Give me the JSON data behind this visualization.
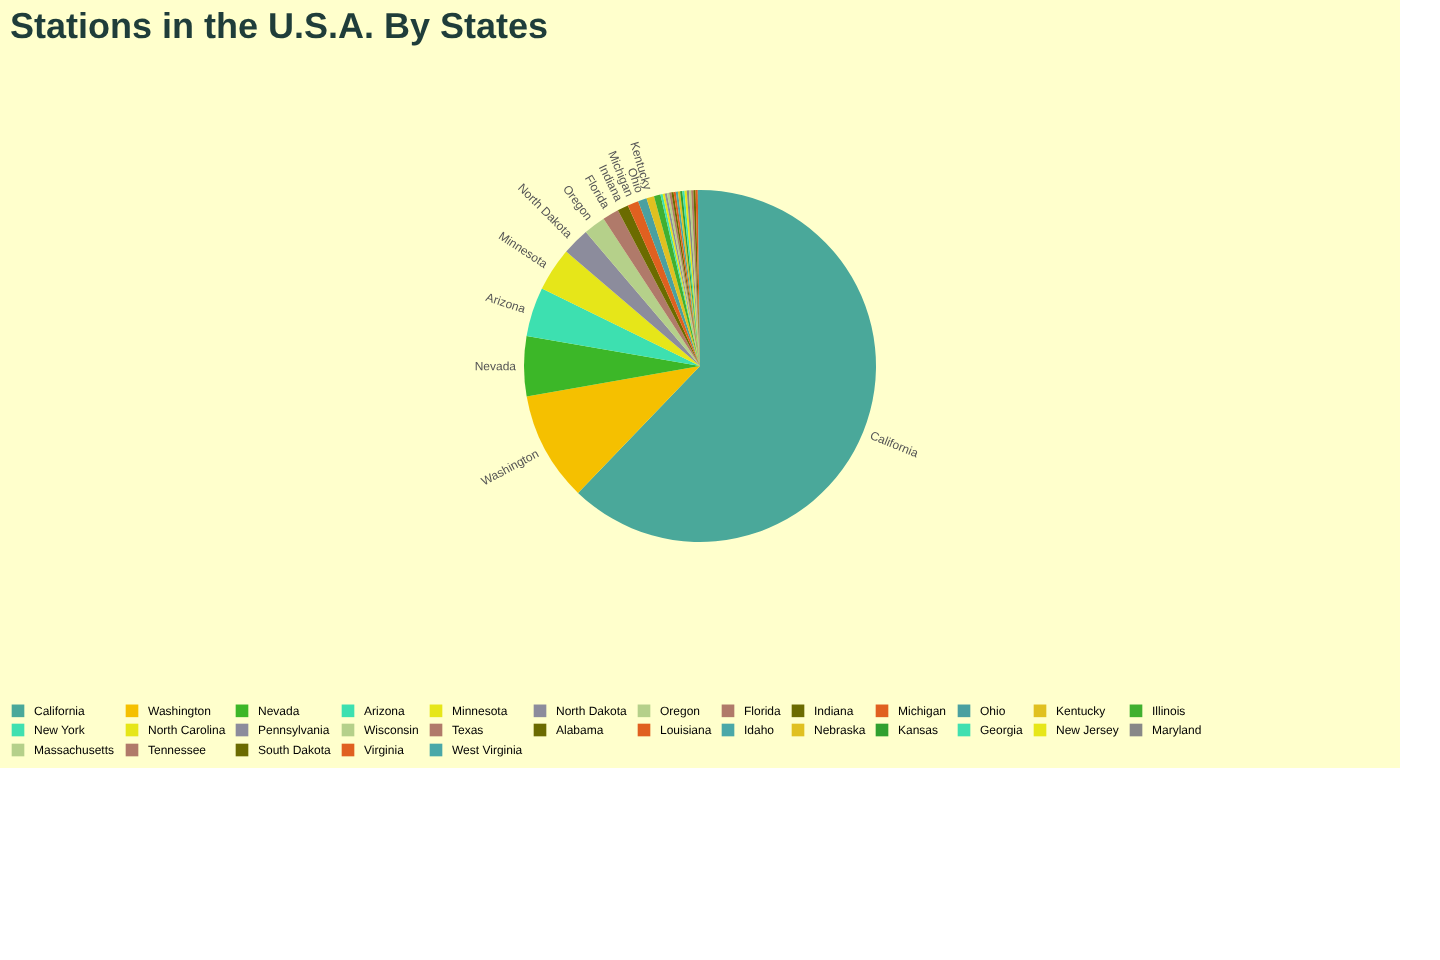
{
  "chart_data": {
    "type": "pie",
    "title": "Stations in the U.S.A. By States",
    "categories": [
      "California",
      "Washington",
      "Nevada",
      "Arizona",
      "Minnesota",
      "North Dakota",
      "Oregon",
      "Florida",
      "Indiana",
      "Michigan",
      "Ohio",
      "Kentucky",
      "Illinois",
      "New York",
      "North Carolina",
      "Pennsylvania",
      "Wisconsin",
      "Texas",
      "Alabama",
      "Louisiana",
      "Idaho",
      "Nebraska",
      "Kansas",
      "Georgia",
      "New Jersey",
      "Maryland",
      "Massachusetts",
      "Tennessee",
      "South Dakota",
      "Virginia",
      "West Virginia"
    ],
    "values": [
      62,
      10,
      5.5,
      4.5,
      4,
      2.5,
      2,
      1.5,
      1,
      1,
      0.8,
      0.7,
      0.6,
      0.2,
      0.2,
      0.2,
      0.2,
      0.2,
      0.2,
      0.2,
      0.2,
      0.2,
      0.2,
      0.2,
      0.2,
      0.2,
      0.2,
      0.2,
      0.2,
      0.2,
      0.2
    ],
    "colors": [
      "#4aa89a",
      "#f5c000",
      "#3cb728",
      "#3de0b0",
      "#e6e619",
      "#8c8c9c",
      "#b5d08a",
      "#b07a6a",
      "#6b6b00",
      "#e06020",
      "#4aa0a0",
      "#e0c020",
      "#40b030",
      "#40e0b0",
      "#e6e619",
      "#8c8c9c",
      "#b5d08a",
      "#b07a6a",
      "#6b6b00",
      "#e06020",
      "#4aa8a8",
      "#e0c020",
      "#30a030",
      "#40e0b0",
      "#e6e619",
      "#888888",
      "#b5d08a",
      "#b07a6a",
      "#6b6b00",
      "#e06020",
      "#4aa8a8"
    ],
    "legend": "bottom"
  }
}
